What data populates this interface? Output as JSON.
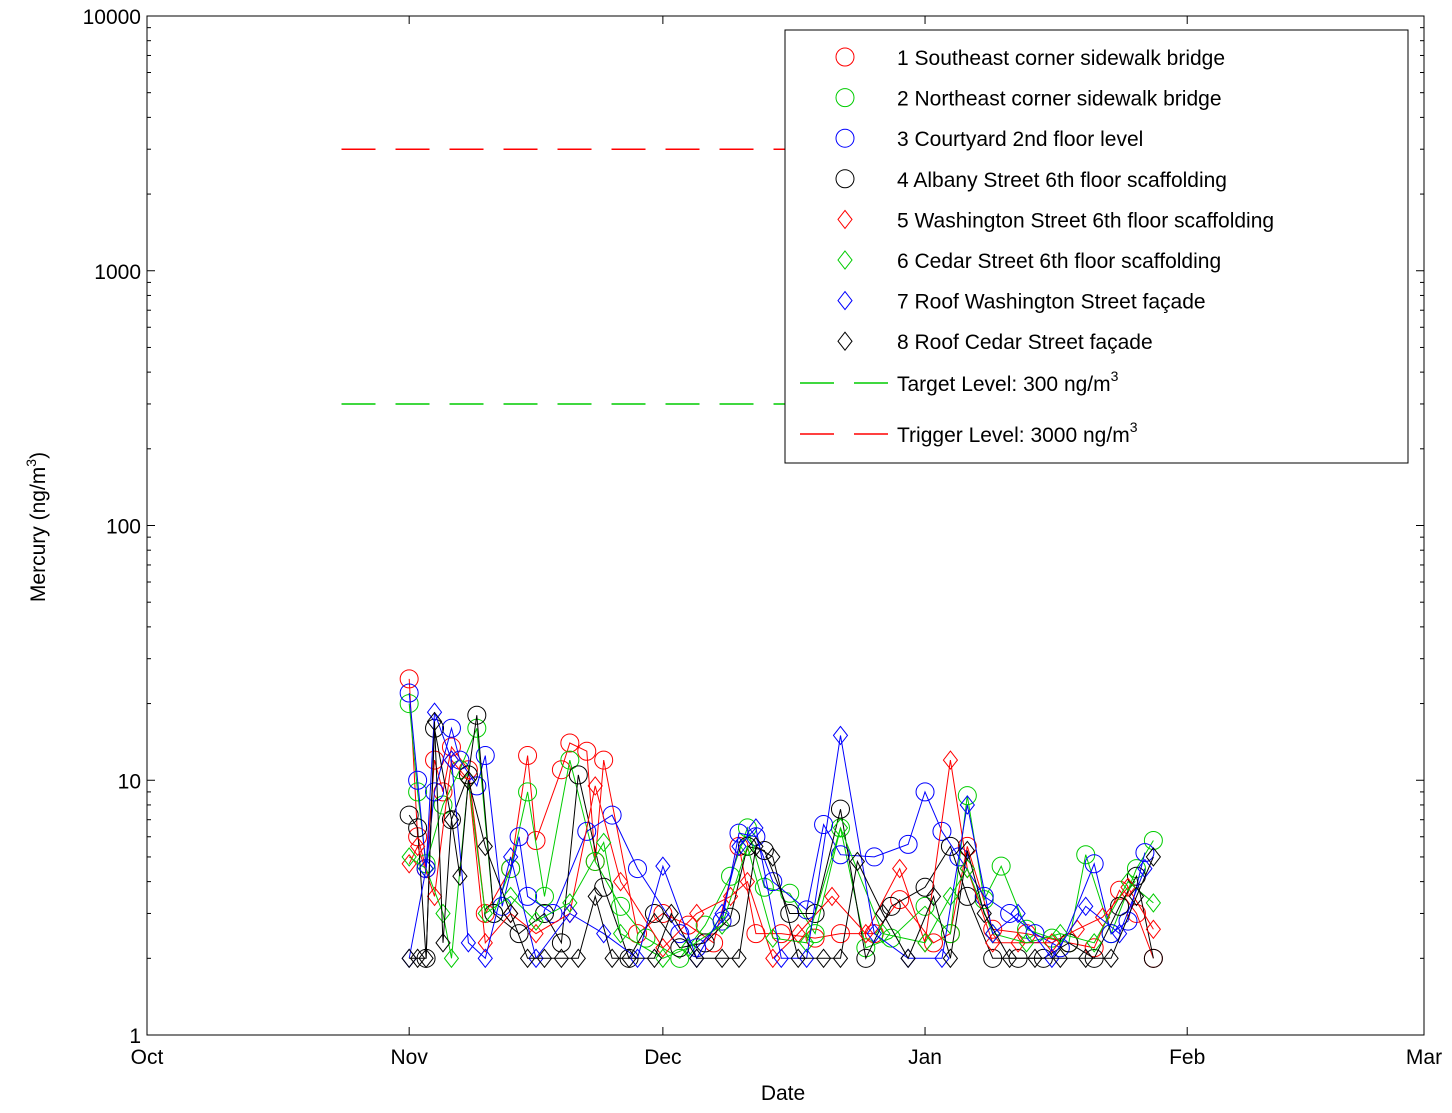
{
  "chart_data": {
    "type": "line",
    "xlabel": "Date",
    "ylabel": "Mercury (ng/m",
    "ylabel_sup": "3",
    "ylabel_tail": ")",
    "y_scale": "log",
    "ylim": [
      1,
      10000
    ],
    "xlim": [
      "Oct",
      "Mar"
    ],
    "x_ticks": [
      "Oct",
      "Nov",
      "Dec",
      "Jan",
      "Feb",
      "Mar"
    ],
    "y_ticks": [
      "1",
      "10",
      "100",
      "1000",
      "10000"
    ],
    "grid": false,
    "legend_position": "top-right",
    "reference_lines": [
      {
        "name": "Target Level: 300 ng/m",
        "sup": "3",
        "value": 300,
        "color": "#00cc00",
        "dash": "long-dash",
        "x_from": "Oct 24",
        "x_to": "Jan"
      },
      {
        "name": "Trigger Level: 3000 ng/m",
        "sup": "3",
        "value": 3000,
        "color": "#ff0000",
        "dash": "long-dash",
        "x_from": "Oct 24",
        "x_to": "Jan"
      }
    ],
    "series": [
      {
        "name": "1 Southeast corner sidewalk bridge",
        "marker": "circle",
        "color": "#ff0000",
        "x": [
          "Nov 1",
          "Nov 2",
          "Nov 3",
          "Nov 4",
          "Nov 5",
          "Nov 6",
          "Nov 8",
          "Nov 10",
          "Nov 13",
          "Nov 15",
          "Nov 16",
          "Nov 19",
          "Nov 20",
          "Nov 22",
          "Nov 23",
          "Nov 24",
          "Nov 28",
          "Dec 1",
          "Dec 4",
          "Dec 7",
          "Dec 10",
          "Dec 12",
          "Dec 15",
          "Dec 19",
          "Dec 22",
          "Dec 26",
          "Dec 29",
          "Jan 2",
          "Jan 4",
          "Jan 6",
          "Jan 9",
          "Jan 13",
          "Jan 18",
          "Jan 21",
          "Jan 24",
          "Jan 26",
          "Jan 28"
        ],
        "y": [
          25,
          6,
          4.5,
          12,
          9,
          13.5,
          11,
          3,
          4.5,
          12.5,
          5.8,
          11,
          14,
          13,
          4.8,
          12,
          2.5,
          3,
          2.7,
          2.3,
          5.5,
          2.5,
          2.5,
          2.4,
          2.5,
          2.5,
          3.4,
          2.3,
          2.5,
          5.5,
          2.6,
          2.5,
          2.3,
          2.2,
          3.7,
          3,
          2
        ]
      },
      {
        "name": "2 Northeast corner sidewalk bridge",
        "marker": "circle",
        "color": "#00cc00",
        "x": [
          "Nov 1",
          "Nov 2",
          "Nov 3",
          "Nov 5",
          "Nov 7",
          "Nov 9",
          "Nov 11",
          "Nov 13",
          "Nov 15",
          "Nov 17",
          "Nov 20",
          "Nov 23",
          "Nov 26",
          "Nov 29",
          "Dec 3",
          "Dec 6",
          "Dec 9",
          "Dec 11",
          "Dec 13",
          "Dec 16",
          "Dec 19",
          "Dec 22",
          "Dec 25",
          "Dec 28",
          "Jan 1",
          "Jan 4",
          "Jan 6",
          "Jan 8",
          "Jan 10",
          "Jan 13",
          "Jan 16",
          "Jan 18",
          "Jan 20",
          "Jan 23",
          "Jan 26",
          "Jan 28"
        ],
        "y": [
          20,
          9,
          4.7,
          8,
          11,
          16,
          3,
          4.5,
          9,
          3.5,
          12,
          4.8,
          3.2,
          2.4,
          2,
          2.7,
          4.2,
          6.5,
          3.8,
          3.6,
          2.5,
          6.5,
          2.2,
          2.4,
          3.2,
          2.5,
          8.7,
          3.4,
          4.6,
          2.6,
          2.4,
          2.3,
          5.1,
          2.5,
          4.5,
          5.8
        ]
      },
      {
        "name": "3 Courtyard 2nd floor level",
        "marker": "circle",
        "color": "#0000ff",
        "x": [
          "Nov 1",
          "Nov 2",
          "Nov 3",
          "Nov 4",
          "Nov 6",
          "Nov 7",
          "Nov 9",
          "Nov 10",
          "Nov 12",
          "Nov 14",
          "Nov 15",
          "Nov 18",
          "Nov 22",
          "Nov 25",
          "Nov 28",
          "Dec 3",
          "Dec 5",
          "Dec 8",
          "Dec 10",
          "Dec 12",
          "Dec 14",
          "Dec 18",
          "Dec 20",
          "Dec 22",
          "Dec 26",
          "Dec 30",
          "Jan 1",
          "Jan 3",
          "Jan 5",
          "Jan 8",
          "Jan 11",
          "Jan 14",
          "Jan 17",
          "Jan 21",
          "Jan 23",
          "Jan 25",
          "Jan 27"
        ],
        "y": [
          22,
          10,
          4.5,
          9,
          16,
          12,
          9.5,
          12.5,
          3.2,
          6,
          3.5,
          3,
          6.3,
          7.3,
          4.5,
          2.5,
          2.2,
          2.8,
          6.2,
          6,
          4,
          3.1,
          6.7,
          5.1,
          5,
          5.6,
          9,
          6.3,
          5,
          3.5,
          3,
          2.5,
          2.2,
          4.7,
          2.5,
          2.8,
          5.2
        ]
      },
      {
        "name": "4 Albany Street 6th floor scaffolding",
        "marker": "circle",
        "color": "#000000",
        "x": [
          "Nov 1",
          "Nov 2",
          "Nov 3",
          "Nov 4",
          "Nov 6",
          "Nov 8",
          "Nov 9",
          "Nov 11",
          "Nov 14",
          "Nov 17",
          "Nov 19",
          "Nov 21",
          "Nov 24",
          "Nov 27",
          "Nov 30",
          "Dec 3",
          "Dec 6",
          "Dec 9",
          "Dec 11",
          "Dec 13",
          "Dec 16",
          "Dec 19",
          "Dec 22",
          "Dec 25",
          "Dec 28",
          "Jan 1",
          "Jan 4",
          "Jan 6",
          "Jan 9",
          "Jan 12",
          "Jan 15",
          "Jan 18",
          "Jan 21",
          "Jan 24",
          "Jan 26",
          "Jan 28"
        ],
        "y": [
          7.3,
          6.5,
          2,
          16,
          7,
          10.5,
          18,
          3,
          2.5,
          3,
          2.3,
          10.5,
          3.8,
          2,
          3,
          2.2,
          2.3,
          2.9,
          5.5,
          5.3,
          3,
          3,
          7.7,
          2,
          3.2,
          3.8,
          5.5,
          3.5,
          2,
          2,
          2,
          2.3,
          2,
          3.2,
          4.2,
          2
        ]
      },
      {
        "name": "5 Washington Street 6th floor scaffolding",
        "marker": "diamond",
        "color": "#ff0000",
        "x": [
          "Nov 1",
          "Nov 2",
          "Nov 4",
          "Nov 6",
          "Nov 8",
          "Nov 10",
          "Nov 13",
          "Nov 16",
          "Nov 20",
          "Nov 23",
          "Nov 26",
          "Dec 1",
          "Dec 5",
          "Dec 9",
          "Dec 11",
          "Dec 14",
          "Dec 17",
          "Dec 21",
          "Dec 25",
          "Dec 29",
          "Jan 1",
          "Jan 4",
          "Jan 6",
          "Jan 9",
          "Jan 12",
          "Jan 16",
          "Jan 19",
          "Jan 22",
          "Jan 25",
          "Jan 28"
        ],
        "y": [
          4.7,
          5.5,
          3.5,
          12,
          10,
          2.3,
          3,
          2.5,
          3,
          9.5,
          4,
          2.2,
          3,
          3.5,
          4,
          2,
          2.5,
          3.5,
          2.5,
          4.5,
          2.3,
          12,
          4.5,
          2.3,
          2.3,
          2.3,
          2.6,
          2.9,
          3.8,
          2.6
        ]
      },
      {
        "name": "6 Cedar Street 6th floor scaffolding",
        "marker": "diamond",
        "color": "#00cc00",
        "x": [
          "Nov 1",
          "Nov 3",
          "Nov 5",
          "Nov 6",
          "Nov 8",
          "Nov 10",
          "Nov 13",
          "Nov 16",
          "Nov 20",
          "Nov 24",
          "Nov 26",
          "Dec 1",
          "Dec 4",
          "Dec 8",
          "Dec 11",
          "Dec 14",
          "Dec 18",
          "Dec 22",
          "Dec 27",
          "Jan 1",
          "Jan 4",
          "Jan 6",
          "Jan 9",
          "Jan 13",
          "Jan 17",
          "Jan 21",
          "Jan 25",
          "Jan 28"
        ],
        "y": [
          5,
          4.5,
          3,
          2,
          10,
          3,
          3.5,
          2.8,
          3.3,
          5.7,
          2.5,
          2,
          2.2,
          2.7,
          5.5,
          2.4,
          2.3,
          6.5,
          2.5,
          2.3,
          3.5,
          4.5,
          2.5,
          2.3,
          2.5,
          2.3,
          4,
          3.3
        ]
      },
      {
        "name": "7 Roof Washington Street façade",
        "marker": "diamond",
        "color": "#0000ff",
        "x": [
          "Nov 1",
          "Nov 3",
          "Nov 4",
          "Nov 6",
          "Nov 8",
          "Nov 10",
          "Nov 13",
          "Nov 16",
          "Nov 20",
          "Nov 24",
          "Nov 28",
          "Dec 1",
          "Dec 5",
          "Dec 8",
          "Dec 10",
          "Dec 12",
          "Dec 15",
          "Dec 18",
          "Dec 22",
          "Dec 26",
          "Dec 30",
          "Jan 3",
          "Jan 6",
          "Jan 9",
          "Jan 12",
          "Jan 16",
          "Jan 20",
          "Jan 24",
          "Jan 27"
        ],
        "y": [
          2,
          4.5,
          18.5,
          12,
          2.3,
          2,
          5,
          2,
          3,
          2.5,
          2,
          4.6,
          2,
          3,
          5.5,
          6.5,
          2,
          2,
          15,
          2.5,
          2,
          2,
          8,
          2.5,
          3,
          2,
          3.2,
          2.5,
          4.5
        ]
      },
      {
        "name": "8 Roof Cedar Street façade",
        "marker": "diamond",
        "color": "#000000",
        "x": [
          "Nov 1",
          "Nov 2",
          "Nov 3",
          "Nov 4",
          "Nov 5",
          "Nov 6",
          "Nov 7",
          "Nov 8",
          "Nov 10",
          "Nov 13",
          "Nov 15",
          "Nov 17",
          "Nov 19",
          "Nov 21",
          "Nov 23",
          "Nov 25",
          "Nov 27",
          "Nov 30",
          "Dec 2",
          "Dec 5",
          "Dec 8",
          "Dec 10",
          "Dec 12",
          "Dec 14",
          "Dec 17",
          "Dec 20",
          "Dec 22",
          "Dec 24",
          "Dec 27",
          "Dec 30",
          "Jan 2",
          "Jan 4",
          "Jan 6",
          "Jan 8",
          "Jan 11",
          "Jan 14",
          "Jan 17",
          "Jan 20",
          "Jan 23",
          "Jan 26",
          "Jan 28"
        ],
        "y": [
          2,
          2,
          2,
          17,
          2.3,
          7,
          4.2,
          10,
          5.5,
          3,
          2,
          2,
          2,
          2,
          3.5,
          2,
          2,
          2,
          3,
          2,
          2,
          2,
          5.5,
          5,
          2,
          2,
          2,
          4.8,
          3,
          2,
          3.5,
          2,
          5.3,
          3,
          2,
          2,
          2,
          2,
          2,
          3.5,
          5
        ]
      }
    ]
  }
}
